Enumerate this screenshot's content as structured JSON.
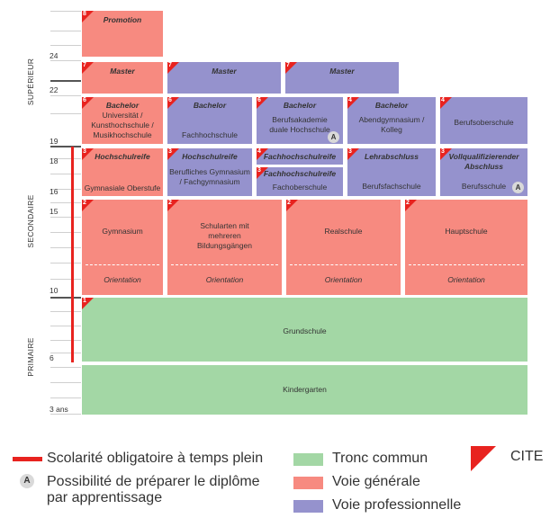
{
  "stages": {
    "superieur": "SUPÉRIEUR",
    "secondaire": "SECONDAIRE",
    "primaire": "PRIMAIRE"
  },
  "ages": {
    "a24": "24",
    "a22": "22",
    "a19": "19",
    "a18": "18",
    "a16": "16",
    "a15": "15",
    "a10": "10",
    "a6": "6",
    "a3": "3 ans"
  },
  "blocks": {
    "promotion": {
      "level": "8",
      "title": "Promotion"
    },
    "master1": {
      "level": "7",
      "title": "Master"
    },
    "master2": {
      "level": "7",
      "title": "Master"
    },
    "master3": {
      "level": "7",
      "title": "Master"
    },
    "bachelor_uni": {
      "level": "6",
      "title": "Bachelor",
      "text": "Universität / Kunsthochschule / Musikhochschule"
    },
    "bachelor_fh": {
      "level": "6",
      "title": "Bachelor",
      "text": "Fachhochschule"
    },
    "bachelor_ba": {
      "level": "6",
      "title": "Bachelor",
      "text": "Berufsakademie duale Hochschule"
    },
    "bachelor_abend": {
      "level": "4",
      "title": "Bachelor",
      "text": "Abendgymnasium / Kolleg"
    },
    "berufsoberschule": {
      "level": "4",
      "text": "Berufsoberschule"
    },
    "hsr_gym": {
      "level": "3",
      "title": "Hochschulreife",
      "text": "Gymnasiale Oberstufe"
    },
    "hsr_beruf": {
      "level": "3",
      "title": "Hochschulreife",
      "text": "Berufliches Gymnasium / Fachgymnasium"
    },
    "fhsr1": {
      "level": "4",
      "title": "Fachhochschulreife"
    },
    "fhsr2": {
      "level": "3",
      "title": "Fachhochschulreife",
      "text": "Fachoberschule"
    },
    "lehrabschluss": {
      "level": "3",
      "title": "Lehrabschluss",
      "text": "Berufsfachschule"
    },
    "vollqual": {
      "level": "3",
      "title": "Vollqualifizierender Abschluss",
      "text": "Berufsschule"
    },
    "gymnasium": {
      "level": "2",
      "text": "Gymnasium",
      "orientation": "Orientation"
    },
    "schularten": {
      "level": "2",
      "text": "Schularten mit mehreren Bildungsgängen",
      "orientation": "Orientation"
    },
    "realschule": {
      "level": "2",
      "text": "Realschule",
      "orientation": "Orientation"
    },
    "hauptschule": {
      "level": "2",
      "text": "Hauptschule",
      "orientation": "Orientation"
    },
    "grundschule": {
      "level": "1",
      "text": "Grundschule"
    },
    "kindergarten": {
      "text": "Kindergarten"
    }
  },
  "badge_letter": "A",
  "legend": {
    "obligatoire": "Scolarité obligatoire à temps plein",
    "apprentissage": "Possibilité de préparer le diplôme par apprentissage",
    "tronc": "Tronc commun",
    "generale": "Voie générale",
    "professionnelle": "Voie professionnelle",
    "cite": "CITE"
  },
  "colors": {
    "general": "#f78a80",
    "professional": "#9592cd",
    "common": "#a3d7a5",
    "compulsory": "#e8231f",
    "badge": "#d9d9d9"
  }
}
